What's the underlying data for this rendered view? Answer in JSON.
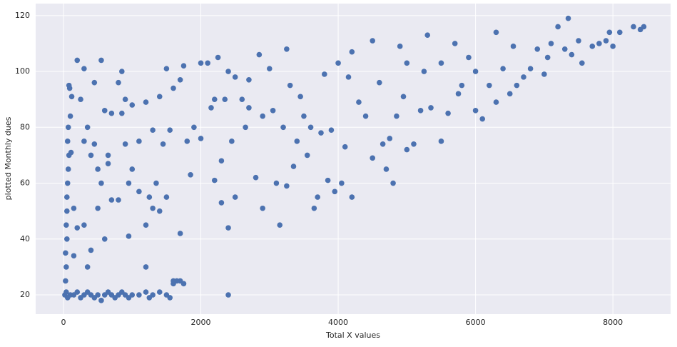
{
  "chart_data": {
    "type": "scatter",
    "x_label": "Total X values",
    "y_label": "plotted Monthly dues",
    "color": "#4c72b0",
    "grid": true,
    "xlim": [
      -405,
      8840
    ],
    "ylim": [
      13.1,
      124.3
    ],
    "xticks": [
      0,
      2000,
      4000,
      6000,
      8000
    ],
    "yticks": [
      20,
      40,
      60,
      80,
      100,
      120
    ],
    "x": [
      20,
      40,
      60,
      100,
      150,
      200,
      250,
      300,
      350,
      400,
      450,
      500,
      550,
      600,
      650,
      700,
      750,
      800,
      850,
      900,
      950,
      1000,
      1100,
      1200,
      1250,
      1300,
      1400,
      1500,
      1550,
      1700,
      1750,
      1650,
      1600,
      2400,
      30,
      40,
      30,
      50,
      40,
      50,
      50,
      60,
      70,
      80,
      60,
      70,
      80,
      90,
      100,
      110,
      120,
      150,
      150,
      200,
      200,
      250,
      300,
      300,
      300,
      350,
      350,
      400,
      400,
      450,
      450,
      500,
      500,
      550,
      550,
      600,
      600,
      650,
      650,
      700,
      700,
      800,
      800,
      850,
      850,
      900,
      900,
      950,
      950,
      1000,
      1000,
      1100,
      1100,
      1200,
      1200,
      1200,
      1250,
      1300,
      1300,
      1350,
      1400,
      1400,
      1450,
      1500,
      1500,
      1550,
      1600,
      1600,
      1700,
      1700,
      1750,
      1800,
      1850,
      1900,
      2000,
      2000,
      2100,
      2150,
      2200,
      2200,
      2250,
      2300,
      2300,
      2350,
      2400,
      2400,
      2450,
      2500,
      2500,
      2600,
      2650,
      2700,
      2700,
      2800,
      2850,
      2900,
      2900,
      3000,
      3050,
      3100,
      3150,
      3200,
      3250,
      3250,
      3300,
      3350,
      3400,
      3450,
      3500,
      3550,
      3600,
      3650,
      3700,
      3750,
      3800,
      3850,
      3900,
      3950,
      4000,
      4050,
      4100,
      4150,
      4200,
      4200,
      4300,
      4400,
      4500,
      4500,
      4600,
      4650,
      4700,
      4750,
      4800,
      4850,
      4900,
      4950,
      5000,
      5000,
      5100,
      5200,
      5250,
      5300,
      5350,
      5500,
      5500,
      5600,
      5700,
      5750,
      5800,
      5900,
      6000,
      6000,
      6100,
      6200,
      6300,
      6300,
      6400,
      6500,
      6550,
      6600,
      6700,
      6800,
      6900,
      7000,
      7050,
      7100,
      7200,
      7300,
      7350,
      7400,
      7500,
      7550,
      7700,
      7800,
      7900,
      7950,
      8000,
      8100,
      8300,
      8400,
      8450
    ],
    "values": [
      20,
      21,
      19,
      20,
      20,
      21,
      19,
      20,
      21,
      20,
      19,
      20,
      18,
      20,
      21,
      20,
      19,
      20,
      21,
      20,
      19,
      20,
      20,
      21,
      19,
      20,
      21,
      20,
      19,
      25,
      24,
      25,
      24,
      20,
      25,
      30,
      35,
      40,
      45,
      50,
      55,
      60,
      65,
      70,
      75,
      80,
      95,
      94,
      84,
      71,
      91,
      51,
      34,
      44,
      104,
      90,
      101,
      75,
      45,
      30,
      80,
      36,
      70,
      96,
      74,
      51,
      65,
      104,
      60,
      86,
      40,
      70,
      67,
      85,
      54,
      96,
      54,
      100,
      85,
      90,
      74,
      41,
      60,
      65,
      88,
      57,
      75,
      89,
      45,
      30,
      55,
      79,
      51,
      60,
      91,
      50,
      74,
      101,
      55,
      79,
      94,
      25,
      42,
      97,
      102,
      75,
      63,
      80,
      103,
      76,
      103,
      87,
      90,
      61,
      105,
      68,
      53,
      90,
      100,
      44,
      75,
      98,
      55,
      90,
      80,
      87,
      97,
      62,
      106,
      51,
      84,
      101,
      86,
      60,
      45,
      80,
      108,
      59,
      95,
      66,
      75,
      91,
      84,
      70,
      80,
      51,
      55,
      78,
      99,
      61,
      79,
      57,
      103,
      60,
      73,
      98,
      55,
      107,
      89,
      84,
      111,
      69,
      96,
      74,
      65,
      76,
      60,
      84,
      109,
      91,
      72,
      103,
      74,
      86,
      100,
      113,
      87,
      103,
      75,
      85,
      110,
      92,
      95,
      105,
      86,
      100,
      83,
      95,
      114,
      89,
      101,
      92,
      109,
      95,
      98,
      101,
      108,
      99,
      105,
      110,
      116,
      108,
      119,
      106,
      111,
      103,
      109,
      110,
      111,
      114,
      109,
      114,
      116,
      115,
      116
    ]
  }
}
